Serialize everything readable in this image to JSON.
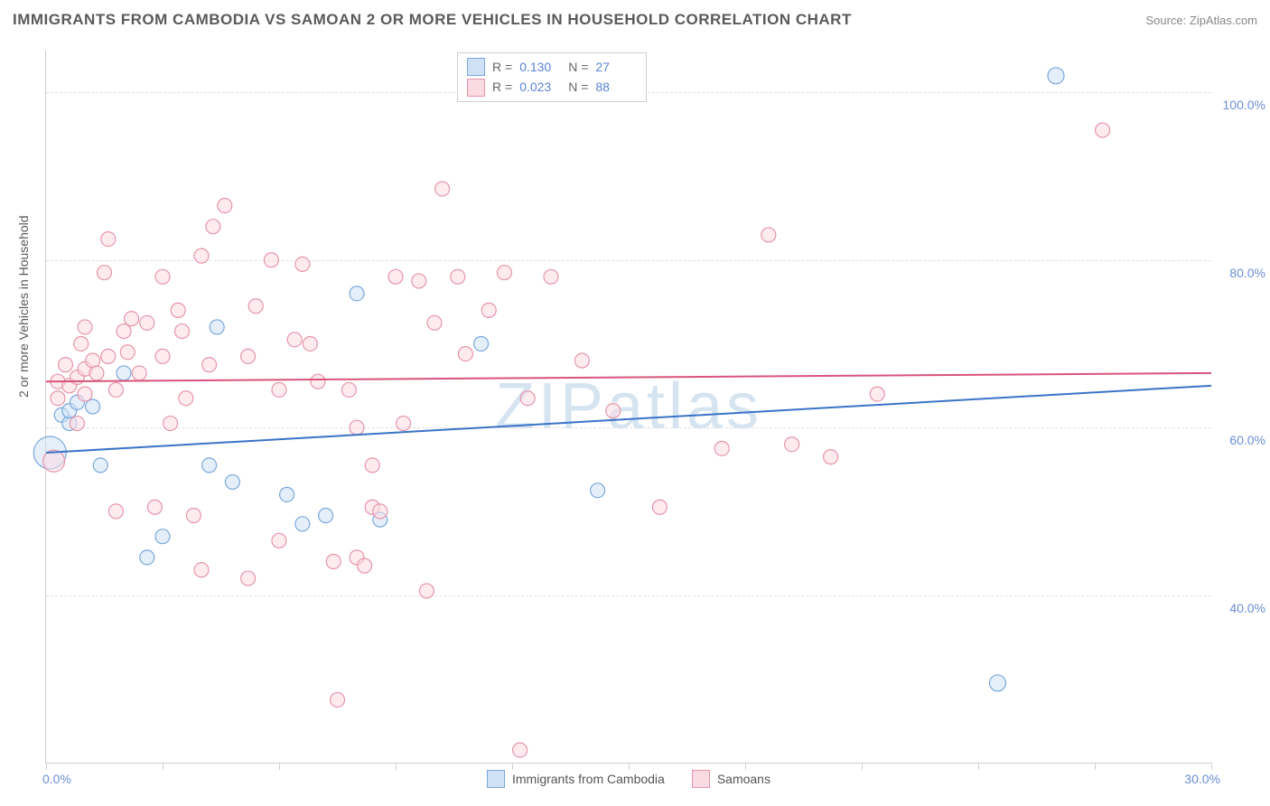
{
  "header": {
    "title": "IMMIGRANTS FROM CAMBODIA VS SAMOAN 2 OR MORE VEHICLES IN HOUSEHOLD CORRELATION CHART",
    "source": "Source: ZipAtlas.com"
  },
  "watermark": "ZIPatlas",
  "axis": {
    "y_title": "2 or more Vehicles in Household",
    "xlim": [
      0,
      30
    ],
    "ylim": [
      20,
      105
    ],
    "y_ticks": [
      40,
      60,
      80,
      100
    ],
    "y_tick_labels": [
      "40.0%",
      "60.0%",
      "80.0%",
      "100.0%"
    ],
    "x_tick_positions": [
      0,
      3,
      6,
      9,
      12,
      15,
      18,
      21,
      24,
      27,
      30
    ],
    "x_end_labels": {
      "left": "0.0%",
      "right": "30.0%"
    },
    "grid_color": "#e0e0e0",
    "border_color": "#cfcfcf",
    "label_color": "#6b8fd4",
    "title_color": "#5a5a5a",
    "label_fontsize": 14
  },
  "legend_top": {
    "rows": [
      {
        "swatch_fill": "#cfe1f5",
        "swatch_border": "#7aa8dd",
        "r_label": "R =",
        "r_value": "0.130",
        "n_label": "N =",
        "n_value": "27"
      },
      {
        "swatch_fill": "#fbdbe3",
        "swatch_border": "#e695ab",
        "r_label": "R =",
        "r_value": "0.023",
        "n_label": "N =",
        "n_value": "88"
      }
    ]
  },
  "legend_bottom": {
    "items": [
      {
        "swatch_fill": "#cfe1f5",
        "swatch_border": "#7aa8dd",
        "label": "Immigrants from Cambodia"
      },
      {
        "swatch_fill": "#fbdbe3",
        "swatch_border": "#e695ab",
        "label": "Samoans"
      }
    ]
  },
  "chart": {
    "type": "scatter",
    "background_color": "#ffffff",
    "series": [
      {
        "name": "Immigrants from Cambodia",
        "fill": "#cfe1f5",
        "stroke": "#7aa8dd",
        "fill_opacity": 0.55,
        "points": [
          {
            "x": 0.1,
            "y": 57.0,
            "r": 18
          },
          {
            "x": 0.4,
            "y": 61.5,
            "r": 8
          },
          {
            "x": 0.6,
            "y": 60.5,
            "r": 8
          },
          {
            "x": 0.6,
            "y": 62.0,
            "r": 8
          },
          {
            "x": 0.8,
            "y": 63.0,
            "r": 8
          },
          {
            "x": 1.2,
            "y": 62.5,
            "r": 8
          },
          {
            "x": 1.4,
            "y": 55.5,
            "r": 8
          },
          {
            "x": 2.0,
            "y": 66.5,
            "r": 8
          },
          {
            "x": 2.6,
            "y": 44.5,
            "r": 8
          },
          {
            "x": 3.0,
            "y": 47.0,
            "r": 8
          },
          {
            "x": 4.2,
            "y": 55.5,
            "r": 8
          },
          {
            "x": 4.4,
            "y": 72.0,
            "r": 8
          },
          {
            "x": 4.8,
            "y": 53.5,
            "r": 8
          },
          {
            "x": 6.2,
            "y": 52.0,
            "r": 8
          },
          {
            "x": 6.6,
            "y": 48.5,
            "r": 8
          },
          {
            "x": 7.2,
            "y": 49.5,
            "r": 8
          },
          {
            "x": 8.0,
            "y": 76.0,
            "r": 8
          },
          {
            "x": 8.6,
            "y": 49.0,
            "r": 8
          },
          {
            "x": 11.2,
            "y": 70.0,
            "r": 8
          },
          {
            "x": 14.2,
            "y": 52.5,
            "r": 8
          },
          {
            "x": 24.5,
            "y": 29.5,
            "r": 9
          },
          {
            "x": 26.0,
            "y": 102.0,
            "r": 9
          }
        ],
        "trend": {
          "x1": 0,
          "y1": 57.0,
          "x2": 30,
          "y2": 65.0,
          "stroke": "#3a73c9",
          "width": 2
        }
      },
      {
        "name": "Samoans",
        "fill": "#fbdbe3",
        "stroke": "#e695ab",
        "fill_opacity": 0.55,
        "points": [
          {
            "x": 0.2,
            "y": 56.0,
            "r": 12
          },
          {
            "x": 0.3,
            "y": 63.5,
            "r": 8
          },
          {
            "x": 0.3,
            "y": 65.5,
            "r": 8
          },
          {
            "x": 0.5,
            "y": 67.5,
            "r": 8
          },
          {
            "x": 0.6,
            "y": 65.0,
            "r": 8
          },
          {
            "x": 0.8,
            "y": 60.5,
            "r": 8
          },
          {
            "x": 0.8,
            "y": 66.0,
            "r": 8
          },
          {
            "x": 0.9,
            "y": 70.0,
            "r": 8
          },
          {
            "x": 1.0,
            "y": 64.0,
            "r": 8
          },
          {
            "x": 1.0,
            "y": 67.0,
            "r": 8
          },
          {
            "x": 1.0,
            "y": 72.0,
            "r": 8
          },
          {
            "x": 1.2,
            "y": 68.0,
            "r": 8
          },
          {
            "x": 1.3,
            "y": 66.5,
            "r": 8
          },
          {
            "x": 1.5,
            "y": 78.5,
            "r": 8
          },
          {
            "x": 1.6,
            "y": 82.5,
            "r": 8
          },
          {
            "x": 1.6,
            "y": 68.5,
            "r": 8
          },
          {
            "x": 1.8,
            "y": 64.5,
            "r": 8
          },
          {
            "x": 1.8,
            "y": 50.0,
            "r": 8
          },
          {
            "x": 2.0,
            "y": 71.5,
            "r": 8
          },
          {
            "x": 2.1,
            "y": 69.0,
            "r": 8
          },
          {
            "x": 2.2,
            "y": 73.0,
            "r": 8
          },
          {
            "x": 2.4,
            "y": 66.5,
            "r": 8
          },
          {
            "x": 2.6,
            "y": 72.5,
            "r": 8
          },
          {
            "x": 2.8,
            "y": 50.5,
            "r": 8
          },
          {
            "x": 3.0,
            "y": 68.5,
            "r": 8
          },
          {
            "x": 3.0,
            "y": 78.0,
            "r": 8
          },
          {
            "x": 3.2,
            "y": 60.5,
            "r": 8
          },
          {
            "x": 3.4,
            "y": 74.0,
            "r": 8
          },
          {
            "x": 3.5,
            "y": 71.5,
            "r": 8
          },
          {
            "x": 3.6,
            "y": 63.5,
            "r": 8
          },
          {
            "x": 3.8,
            "y": 49.5,
            "r": 8
          },
          {
            "x": 4.0,
            "y": 80.5,
            "r": 8
          },
          {
            "x": 4.0,
            "y": 43.0,
            "r": 8
          },
          {
            "x": 4.2,
            "y": 67.5,
            "r": 8
          },
          {
            "x": 4.3,
            "y": 84.0,
            "r": 8
          },
          {
            "x": 4.6,
            "y": 86.5,
            "r": 8
          },
          {
            "x": 5.2,
            "y": 68.5,
            "r": 8
          },
          {
            "x": 5.2,
            "y": 42.0,
            "r": 8
          },
          {
            "x": 5.4,
            "y": 74.5,
            "r": 8
          },
          {
            "x": 5.8,
            "y": 80.0,
            "r": 8
          },
          {
            "x": 6.0,
            "y": 64.5,
            "r": 8
          },
          {
            "x": 6.0,
            "y": 46.5,
            "r": 8
          },
          {
            "x": 6.4,
            "y": 70.5,
            "r": 8
          },
          {
            "x": 6.6,
            "y": 79.5,
            "r": 8
          },
          {
            "x": 6.8,
            "y": 70.0,
            "r": 8
          },
          {
            "x": 7.0,
            "y": 65.5,
            "r": 8
          },
          {
            "x": 7.4,
            "y": 44.0,
            "r": 8
          },
          {
            "x": 7.5,
            "y": 27.5,
            "r": 8
          },
          {
            "x": 7.8,
            "y": 64.5,
            "r": 8
          },
          {
            "x": 8.0,
            "y": 60.0,
            "r": 8
          },
          {
            "x": 8.0,
            "y": 44.5,
            "r": 8
          },
          {
            "x": 8.2,
            "y": 43.5,
            "r": 8
          },
          {
            "x": 8.4,
            "y": 50.5,
            "r": 8
          },
          {
            "x": 8.4,
            "y": 55.5,
            "r": 8
          },
          {
            "x": 8.6,
            "y": 50.0,
            "r": 8
          },
          {
            "x": 9.0,
            "y": 78.0,
            "r": 8
          },
          {
            "x": 9.2,
            "y": 60.5,
            "r": 8
          },
          {
            "x": 9.6,
            "y": 77.5,
            "r": 8
          },
          {
            "x": 9.8,
            "y": 40.5,
            "r": 8
          },
          {
            "x": 10.0,
            "y": 72.5,
            "r": 8
          },
          {
            "x": 10.2,
            "y": 88.5,
            "r": 8
          },
          {
            "x": 10.6,
            "y": 78.0,
            "r": 8
          },
          {
            "x": 10.8,
            "y": 68.8,
            "r": 8
          },
          {
            "x": 11.4,
            "y": 74.0,
            "r": 8
          },
          {
            "x": 11.8,
            "y": 78.5,
            "r": 8
          },
          {
            "x": 12.2,
            "y": 21.5,
            "r": 8
          },
          {
            "x": 12.4,
            "y": 63.5,
            "r": 8
          },
          {
            "x": 13.0,
            "y": 78.0,
            "r": 8
          },
          {
            "x": 13.8,
            "y": 68.0,
            "r": 8
          },
          {
            "x": 14.6,
            "y": 62.0,
            "r": 8
          },
          {
            "x": 15.8,
            "y": 50.5,
            "r": 8
          },
          {
            "x": 17.4,
            "y": 57.5,
            "r": 8
          },
          {
            "x": 18.6,
            "y": 83.0,
            "r": 8
          },
          {
            "x": 19.2,
            "y": 58.0,
            "r": 8
          },
          {
            "x": 20.2,
            "y": 56.5,
            "r": 8
          },
          {
            "x": 21.4,
            "y": 64.0,
            "r": 8
          },
          {
            "x": 27.2,
            "y": 95.5,
            "r": 8
          }
        ],
        "trend": {
          "x1": 0,
          "y1": 65.5,
          "x2": 30,
          "y2": 66.5,
          "stroke": "#d9547a",
          "width": 2
        }
      }
    ]
  }
}
